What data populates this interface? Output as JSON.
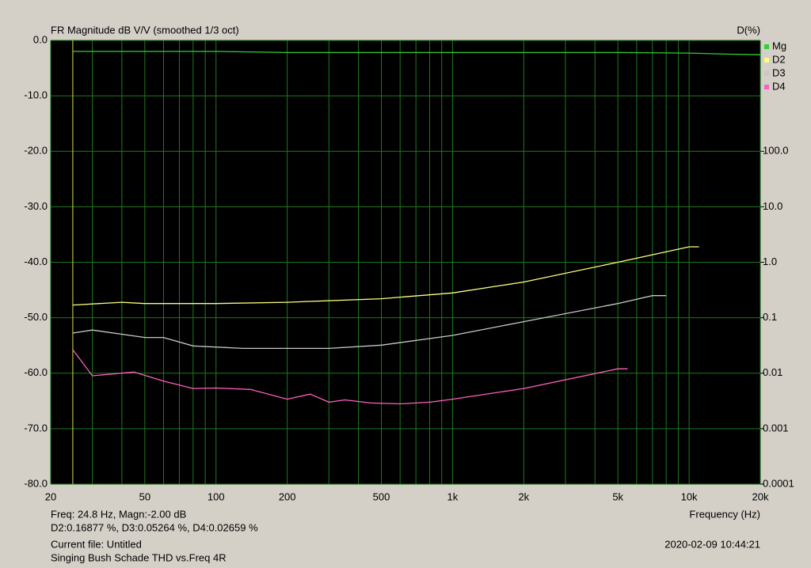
{
  "chart_data": {
    "type": "line",
    "title": "FR Magnitude dB V/V (smoothed 1/3 oct)",
    "y2_label": "D(%)",
    "x_label": "Frequency (Hz)",
    "xlog": true,
    "y2log": true,
    "grid": true,
    "xlim": [
      20,
      20000
    ],
    "xticks": [
      20,
      50,
      100,
      200,
      500,
      {
        "value": 1000,
        "label": "1k"
      },
      {
        "value": 2000,
        "label": "2k"
      },
      {
        "value": 5000,
        "label": "5k"
      },
      {
        "value": 10000,
        "label": "10k"
      },
      {
        "value": 20000,
        "label": "20k"
      }
    ],
    "xminorticks": [
      30,
      40,
      60,
      70,
      80,
      90,
      300,
      400,
      600,
      700,
      800,
      900,
      3000,
      4000,
      6000,
      7000,
      8000,
      9000
    ],
    "ylim": [
      -80,
      0
    ],
    "yticks": [
      {
        "value": 0,
        "label": "0.0"
      },
      {
        "value": -10,
        "label": "-10.0"
      },
      {
        "value": -20,
        "label": "-20.0"
      },
      {
        "value": -30,
        "label": "-30.0"
      },
      {
        "value": -40,
        "label": "-40.0"
      },
      {
        "value": -50,
        "label": "-50.0"
      },
      {
        "value": -60,
        "label": "-60.0"
      },
      {
        "value": -70,
        "label": "-70.0"
      },
      {
        "value": -80,
        "label": "-80.0"
      }
    ],
    "y2lim": [
      0.0001,
      10000
    ],
    "y2ticks": [
      {
        "value": 100,
        "label": "100.0"
      },
      {
        "value": 10,
        "label": "10.0"
      },
      {
        "value": 1,
        "label": "1.0"
      },
      0.1,
      0.01,
      0.001,
      0.0001
    ],
    "cursor_x": 24.8,
    "cursor_color": "#e0e040",
    "series": [
      {
        "name": "Mg",
        "color": "#30d030",
        "x": [
          24.8,
          50,
          100,
          200,
          500,
          1000,
          2000,
          5000,
          10000,
          15000,
          20000
        ],
        "values": [
          -2.0,
          -2.0,
          -2.0,
          -2.2,
          -2.2,
          -2.2,
          -2.2,
          -2.2,
          -2.3,
          -2.5,
          -2.6
        ]
      },
      {
        "name": "D2",
        "color": "#ffff80",
        "axis": "y2",
        "x": [
          24.8,
          40,
          50,
          100,
          200,
          500,
          1000,
          2000,
          5000,
          10000,
          11000
        ],
        "values": [
          0.169,
          0.19,
          0.18,
          0.18,
          0.19,
          0.22,
          0.28,
          0.44,
          1.0,
          1.9,
          1.9
        ]
      },
      {
        "name": "D3",
        "color": "#c8c8c8",
        "axis": "y2",
        "x": [
          24.8,
          30,
          50,
          60,
          80,
          130,
          300,
          500,
          1000,
          2000,
          5000,
          7000,
          8000
        ],
        "values": [
          0.053,
          0.06,
          0.044,
          0.044,
          0.031,
          0.028,
          0.028,
          0.032,
          0.048,
          0.085,
          0.18,
          0.25,
          0.25
        ]
      },
      {
        "name": "D4",
        "color": "#ff60c0",
        "axis": "y2",
        "x": [
          24.8,
          30,
          45,
          60,
          80,
          100,
          140,
          200,
          250,
          300,
          350,
          450,
          600,
          800,
          1000,
          2000,
          5000,
          5500
        ],
        "values": [
          0.0266,
          0.009,
          0.0105,
          0.0072,
          0.0053,
          0.0054,
          0.0051,
          0.0034,
          0.0042,
          0.003,
          0.0033,
          0.0029,
          0.0028,
          0.003,
          0.0034,
          0.0053,
          0.012,
          0.012
        ]
      }
    ],
    "status": {
      "cursor": "Freq: 24.8 Hz, Magn:-2.00 dB",
      "distortion": "D2:0.16877 %, D3:0.05264 %, D4:0.02659 %",
      "file": "Current file: Untitled",
      "description": "Singing Bush Schade THD vs.Freq 4R",
      "timestamp": "2020-02-09  10:44:21"
    }
  }
}
